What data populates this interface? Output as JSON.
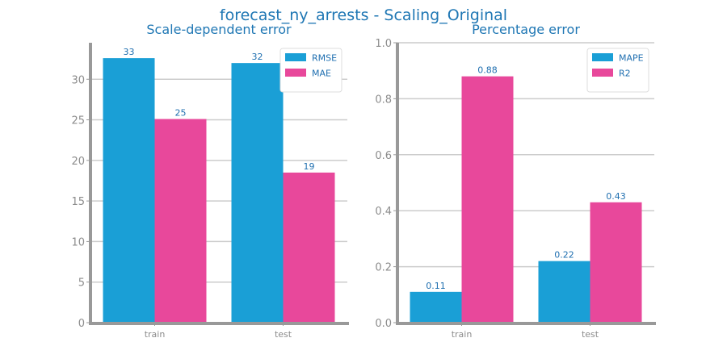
{
  "title": "forecast_ny_arrests - Scaling_Original",
  "colors": {
    "series_a": "#1a9fd6",
    "series_b": "#e8489b",
    "text": "#1f6fb0",
    "axis": "#999999",
    "grid": "#cccccc"
  },
  "chart_data": [
    {
      "type": "bar",
      "title": "Scale-dependent error",
      "categories": [
        "train",
        "test"
      ],
      "series": [
        {
          "name": "RMSE",
          "values": [
            32.6,
            32.0
          ],
          "labels": [
            "33",
            "32"
          ]
        },
        {
          "name": "MAE",
          "values": [
            25.1,
            18.5
          ],
          "labels": [
            "25",
            "19"
          ]
        }
      ],
      "ylim": [
        0,
        34.5
      ],
      "yticks": [
        0,
        5,
        10,
        15,
        20,
        25,
        30
      ],
      "ytick_labels": [
        "0",
        "5",
        "10",
        "15",
        "20",
        "25",
        "30"
      ],
      "grid": true,
      "legend": "top-right"
    },
    {
      "type": "bar",
      "title": "Percentage error",
      "categories": [
        "train",
        "test"
      ],
      "series": [
        {
          "name": "MAPE",
          "values": [
            0.11,
            0.22
          ],
          "labels": [
            "0.11",
            "0.22"
          ]
        },
        {
          "name": "R2",
          "values": [
            0.88,
            0.43
          ],
          "labels": [
            "0.88",
            "0.43"
          ]
        }
      ],
      "ylim": [
        0,
        1.0
      ],
      "yticks": [
        0,
        0.2,
        0.4,
        0.6,
        0.8,
        1.0
      ],
      "ytick_labels": [
        "0.0",
        "0.2",
        "0.4",
        "0.6",
        "0.8",
        "1.0"
      ],
      "grid": true,
      "legend": "top-right"
    }
  ]
}
